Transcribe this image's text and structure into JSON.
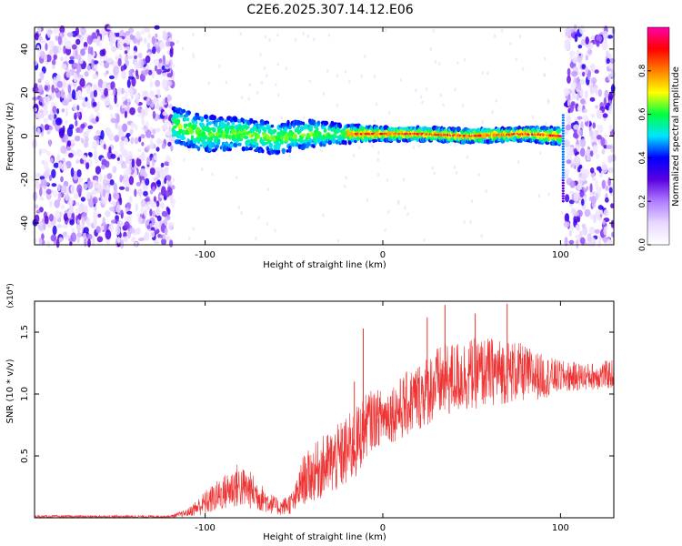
{
  "title": "C2E6.2025.307.14.12.E06",
  "chart_data": [
    {
      "type": "heatmap",
      "description_role": "spectrogram",
      "xlabel": "Height of straight line (km)",
      "ylabel": "Frequency (Hz)",
      "xlim": [
        -196,
        130
      ],
      "ylim": [
        -50,
        50
      ],
      "x_ticks": [
        -100,
        0,
        100
      ],
      "y_ticks": [
        -40,
        -20,
        0,
        20,
        40
      ],
      "x_tick_labels": [
        "-100",
        "0",
        "100"
      ],
      "y_tick_labels": [
        "-40",
        "-20",
        "0",
        "20",
        "40"
      ],
      "noise_regions_km": [
        [
          -196,
          -118
        ],
        [
          103,
          130
        ]
      ],
      "signal_band": [
        {
          "x": -118,
          "center_hz": 5,
          "halfwidth_hz": 8
        },
        {
          "x": -100,
          "center_hz": 1,
          "halfwidth_hz": 8
        },
        {
          "x": -80,
          "center_hz": 1,
          "halfwidth_hz": 7
        },
        {
          "x": -60,
          "center_hz": -1,
          "halfwidth_hz": 7
        },
        {
          "x": -40,
          "center_hz": 1,
          "halfwidth_hz": 6
        },
        {
          "x": -20,
          "center_hz": 1,
          "halfwidth_hz": 4
        },
        {
          "x": 0,
          "center_hz": 1,
          "halfwidth_hz": 3
        },
        {
          "x": 20,
          "center_hz": 1,
          "halfwidth_hz": 3
        },
        {
          "x": 50,
          "center_hz": 0,
          "halfwidth_hz": 3
        },
        {
          "x": 80,
          "center_hz": 1,
          "halfwidth_hz": 3
        },
        {
          "x": 100,
          "center_hz": 0,
          "halfwidth_hz": 4
        }
      ],
      "colorbar": {
        "label": "Normalized spectral amplitude",
        "range": [
          0,
          1
        ],
        "ticks": [
          0,
          0.2,
          0.4,
          0.6,
          0.8
        ],
        "tick_labels": [
          "0.0",
          "0.2",
          "0.4",
          "0.6",
          "0.8"
        ],
        "colors": [
          "#ffffff",
          "#e8d8ff",
          "#b07cff",
          "#5a00e0",
          "#0000ff",
          "#00e6ff",
          "#00ff40",
          "#ffff00",
          "#ff8000",
          "#ff0000",
          "#ff00aa"
        ]
      }
    },
    {
      "type": "line",
      "xlabel": "Height of straight line (km)",
      "ylabel": "SNR (10 * v/v)",
      "y_multiplier": "(x10⁴)",
      "xlim": [
        -196,
        130
      ],
      "ylim": [
        0,
        1.75
      ],
      "x_ticks": [
        -100,
        0,
        100
      ],
      "y_ticks": [
        0.5,
        1.0,
        1.5
      ],
      "x_tick_labels": [
        "-100",
        "0",
        "100"
      ],
      "y_tick_labels": [
        "0.5",
        "1.0",
        "1.5"
      ],
      "color": "#ee3333",
      "envelope": [
        {
          "x": -196,
          "mean": 0.01,
          "amp": 0.01
        },
        {
          "x": -120,
          "mean": 0.01,
          "amp": 0.01
        },
        {
          "x": -110,
          "mean": 0.04,
          "amp": 0.03
        },
        {
          "x": -100,
          "mean": 0.12,
          "amp": 0.1
        },
        {
          "x": -90,
          "mean": 0.2,
          "amp": 0.14
        },
        {
          "x": -82,
          "mean": 0.26,
          "amp": 0.18
        },
        {
          "x": -74,
          "mean": 0.22,
          "amp": 0.15
        },
        {
          "x": -66,
          "mean": 0.14,
          "amp": 0.1
        },
        {
          "x": -58,
          "mean": 0.08,
          "amp": 0.06
        },
        {
          "x": -50,
          "mean": 0.13,
          "amp": 0.1
        },
        {
          "x": -45,
          "mean": 0.3,
          "amp": 0.2
        },
        {
          "x": -35,
          "mean": 0.4,
          "amp": 0.25
        },
        {
          "x": -25,
          "mean": 0.48,
          "amp": 0.28
        },
        {
          "x": -15,
          "mean": 0.6,
          "amp": 0.3
        },
        {
          "x": -8,
          "mean": 0.78,
          "amp": 0.25
        },
        {
          "x": 0,
          "mean": 0.82,
          "amp": 0.22
        },
        {
          "x": 10,
          "mean": 0.88,
          "amp": 0.26
        },
        {
          "x": 20,
          "mean": 0.98,
          "amp": 0.28
        },
        {
          "x": 30,
          "mean": 1.08,
          "amp": 0.3
        },
        {
          "x": 45,
          "mean": 1.15,
          "amp": 0.3
        },
        {
          "x": 60,
          "mean": 1.18,
          "amp": 0.28
        },
        {
          "x": 75,
          "mean": 1.18,
          "amp": 0.25
        },
        {
          "x": 90,
          "mean": 1.14,
          "amp": 0.18
        },
        {
          "x": 100,
          "mean": 1.14,
          "amp": 0.13
        },
        {
          "x": 115,
          "mean": 1.14,
          "amp": 0.11
        },
        {
          "x": 130,
          "mean": 1.16,
          "amp": 0.12
        }
      ],
      "spikes": [
        {
          "x": -11,
          "y": 1.53
        },
        {
          "x": -16,
          "y": 1.1
        },
        {
          "x": 25,
          "y": 1.62
        },
        {
          "x": 35,
          "y": 1.72
        },
        {
          "x": 52,
          "y": 1.65
        },
        {
          "x": 70,
          "y": 1.73
        }
      ]
    }
  ]
}
